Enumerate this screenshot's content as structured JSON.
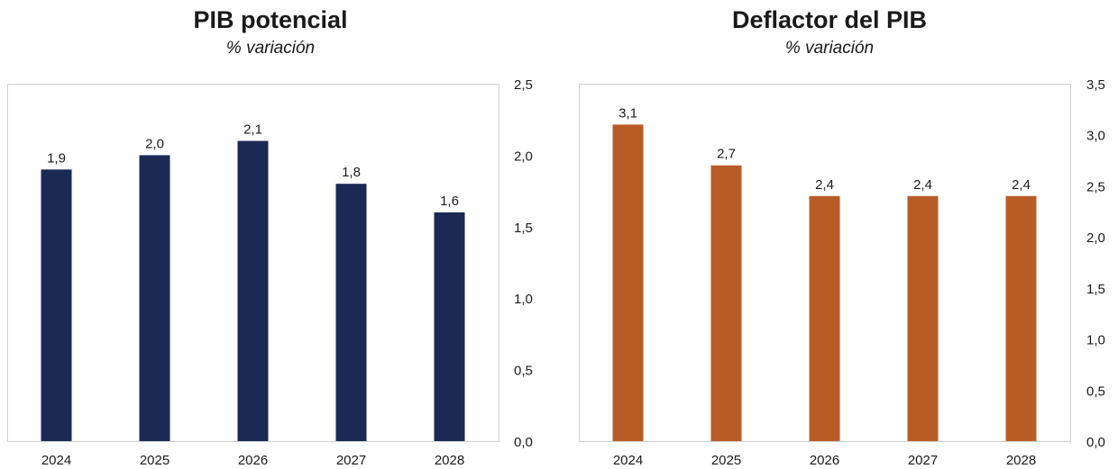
{
  "charts": [
    {
      "title": "PIB potencial",
      "subtitle": "% variación",
      "color": "#1b2a55"
    },
    {
      "title": "Deflactor del PIB",
      "subtitle": "% variación",
      "color": "#b85c27"
    }
  ],
  "chart_data": [
    {
      "type": "bar",
      "title": "PIB potencial",
      "subtitle": "% variación",
      "categories": [
        "2024",
        "2025",
        "2026",
        "2027",
        "2028"
      ],
      "values": [
        1.9,
        2.0,
        2.1,
        1.8,
        1.6
      ],
      "value_labels": [
        "1,9",
        "2,0",
        "2,1",
        "1,8",
        "1,6"
      ],
      "ylim": [
        0,
        2.5
      ],
      "yticks": [
        "0,0",
        "0,5",
        "1,0",
        "1,5",
        "2,0",
        "2,5"
      ],
      "yaxis_side": "right",
      "grid": false,
      "color": "#1b2a55"
    },
    {
      "type": "bar",
      "title": "Deflactor del PIB",
      "subtitle": "% variación",
      "categories": [
        "2024",
        "2025",
        "2026",
        "2027",
        "2028"
      ],
      "values": [
        3.1,
        2.7,
        2.4,
        2.4,
        2.4
      ],
      "value_labels": [
        "3,1",
        "2,7",
        "2,4",
        "2,4",
        "2,4"
      ],
      "ylim": [
        0,
        3.5
      ],
      "yticks": [
        "0,0",
        "0,5",
        "1,0",
        "1,5",
        "2,0",
        "2,5",
        "3,0",
        "3,5"
      ],
      "yaxis_side": "right",
      "grid": false,
      "color": "#b85c27"
    }
  ]
}
